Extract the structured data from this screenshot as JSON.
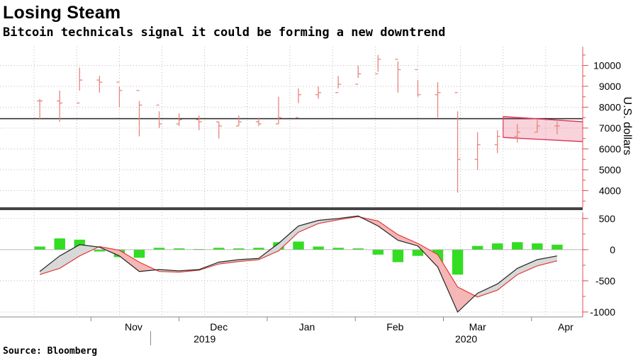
{
  "title": "Losing Steam",
  "subtitle": "Bitcoin technicals signal it could be forming a new downtrend",
  "source": "Source: Bloomberg",
  "colors": {
    "candle": "#e8857d",
    "resistance": "#333333",
    "channel": "#e0365a",
    "macd": "#222222",
    "signal": "#e03a3a",
    "histogram": "#33dd22",
    "fill_bear": "#f5b6b6",
    "fill_bull": "#d8d8d8",
    "grid": "#bbbbbb",
    "axis": "#e05050"
  },
  "chart_data": [
    {
      "type": "candlestick",
      "ylabel": "U.S. dollars",
      "ylim": [
        3200,
        10900
      ],
      "yticks": [
        4000,
        5000,
        6000,
        7000,
        8000,
        9000,
        10000
      ],
      "yticks_labels": [
        "4000",
        "5000",
        "6000",
        "7000",
        "8000",
        "9000",
        "10000"
      ],
      "grid": true,
      "x": [
        "Oct 14",
        "Oct 21",
        "Oct 28",
        "Nov 4",
        "Nov 11",
        "Nov 18",
        "Nov 25",
        "Dec 2",
        "Dec 9",
        "Dec 16",
        "Dec 23",
        "Dec 30",
        "Jan 6",
        "Jan 13",
        "Jan 20",
        "Jan 27",
        "Feb 3",
        "Feb 10",
        "Feb 17",
        "Feb 24",
        "Mar 2",
        "Mar 9",
        "Mar 16",
        "Mar 23",
        "Mar 30",
        "Apr 6",
        "Apr 13"
      ],
      "close": [
        8300,
        8200,
        9300,
        9200,
        8800,
        8100,
        7200,
        7400,
        7300,
        7100,
        7300,
        7200,
        7500,
        8600,
        8700,
        9100,
        9600,
        10300,
        9800,
        8600,
        8700,
        5500,
        6200,
        6600,
        6800,
        7100,
        7100
      ],
      "high": [
        8400,
        8800,
        9900,
        9500,
        9000,
        8300,
        7800,
        7700,
        7600,
        7300,
        7600,
        7500,
        8500,
        8900,
        9000,
        9500,
        10000,
        10500,
        10200,
        9300,
        9200,
        7800,
        6800,
        6900,
        7200,
        7400,
        7300
      ],
      "low": [
        7400,
        7300,
        8800,
        8700,
        8000,
        6600,
        7000,
        7100,
        6900,
        6500,
        7100,
        7100,
        7200,
        8200,
        8400,
        8900,
        9400,
        9700,
        8700,
        8500,
        7500,
        3900,
        5000,
        5800,
        6300,
        6800,
        6700
      ],
      "resistance": 7450,
      "channel": {
        "upper": [
          [
            7200,
            7550
          ],
          [
            7800,
            7300
          ]
        ],
        "lower": [
          [
            7200,
            6550
          ],
          [
            7800,
            6350
          ]
        ]
      }
    },
    {
      "type": "macd",
      "ylim": [
        -1080,
        600
      ],
      "yticks": [
        500,
        0,
        -500,
        -1000
      ],
      "yticks_labels": [
        "500",
        "0",
        "-500",
        "-1000"
      ],
      "grid": true,
      "macd": [
        -350,
        -100,
        80,
        40,
        -100,
        -350,
        -320,
        -340,
        -320,
        -200,
        -160,
        -140,
        100,
        380,
        470,
        500,
        540,
        380,
        150,
        60,
        -280,
        -1000,
        -700,
        -550,
        -300,
        -160,
        -100
      ],
      "signal": [
        -400,
        -300,
        -100,
        50,
        -10,
        -200,
        -350,
        -360,
        -330,
        -230,
        -190,
        -160,
        -20,
        280,
        420,
        480,
        530,
        460,
        240,
        100,
        -80,
        -600,
        -760,
        -650,
        -400,
        -260,
        -180
      ],
      "histogram": [
        50,
        180,
        160,
        -30,
        -120,
        -130,
        30,
        20,
        10,
        30,
        20,
        30,
        120,
        130,
        50,
        30,
        20,
        -80,
        -200,
        -100,
        -200,
        -400,
        60,
        100,
        120,
        100,
        80
      ],
      "xtick_labels": [
        "Nov",
        "Dec",
        "Jan",
        "Feb",
        "Mar",
        "Apr"
      ],
      "xtick_positions": [
        "Nov 1",
        "Dec 1",
        "Jan 1",
        "Feb 1",
        "Mar 1",
        "Apr 1"
      ],
      "year_labels": [
        "2019",
        "2020"
      ]
    }
  ]
}
